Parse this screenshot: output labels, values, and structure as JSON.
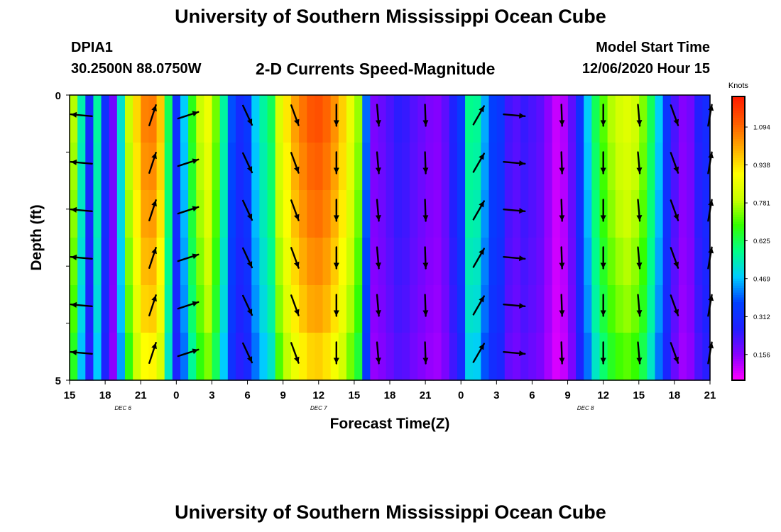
{
  "header": {
    "title": "University of Southern Mississippi Ocean Cube",
    "station": "DPIA1",
    "coordinates": "30.2500N 88.0750W",
    "subtitle": "2-D Currents Speed-Magnitude",
    "model_start_label": "Model Start Time",
    "model_start_value": "12/06/2020 Hour 15",
    "footer_title": "University of Southern Mississippi Ocean Cube"
  },
  "chart_data": {
    "type": "heatmap",
    "xlabel": "Forecast Time(Z)",
    "ylabel": "Depth (ft)",
    "y_tick_labels": [
      "0",
      "5"
    ],
    "ylim": [
      0,
      5
    ],
    "x_hours": [
      15,
      18,
      21,
      0,
      3,
      6,
      9,
      12,
      15,
      18,
      21,
      0,
      3,
      6,
      9,
      12,
      15,
      18,
      21
    ],
    "x_tick_labels": [
      "15",
      "18",
      "21",
      "0",
      "3",
      "6",
      "9",
      "12",
      "15",
      "18",
      "21",
      "0",
      "3",
      "6",
      "9",
      "12",
      "15",
      "18",
      "21"
    ],
    "day_labels": [
      {
        "label": "DEC 6",
        "hour_offset": 4.5
      },
      {
        "label": "DEC 7",
        "hour_offset": 21
      },
      {
        "label": "DEC 8",
        "hour_offset": 43.5
      }
    ],
    "x_range_hours": [
      0,
      54
    ],
    "depth_levels": 6,
    "colorbar": {
      "title": "Knots",
      "tick_labels": [
        "1.094",
        "0.938",
        "0.781",
        "0.625",
        "0.469",
        "0.312",
        "0.156"
      ],
      "ticks": [
        1.094,
        0.938,
        0.781,
        0.625,
        0.469,
        0.312,
        0.156
      ],
      "range": [
        0.05,
        1.22
      ],
      "colors": [
        "#ff00ff",
        "#8800ff",
        "#2020ff",
        "#0040ff",
        "#00ccff",
        "#00ff88",
        "#33ff00",
        "#c8ff00",
        "#ffff00",
        "#ffaa00",
        "#ff5a00",
        "#ff1a00"
      ]
    },
    "speed_by_hour": [
      0.78,
      0.55,
      0.3,
      0.56,
      0.32,
      0.18,
      0.52,
      0.8,
      0.95,
      1.06,
      1.07,
      0.97,
      0.62,
      0.32,
      0.48,
      0.67,
      0.8,
      0.87,
      0.73,
      0.56,
      0.38,
      0.3,
      0.34,
      0.48,
      0.56,
      0.62,
      0.83,
      0.93,
      1.02,
      1.08,
      1.12,
      1.13,
      1.1,
      1.04,
      0.96,
      0.86,
      0.76,
      0.4,
      0.17,
      0.19,
      0.22,
      0.25,
      0.24,
      0.21,
      0.19,
      0.17,
      0.16,
      0.2,
      0.27,
      0.35,
      0.58,
      0.57,
      0.45,
      0.36,
      0.33,
      0.23,
      0.21,
      0.24,
      0.22,
      0.2,
      0.15,
      0.1,
      0.12,
      0.2,
      0.32,
      0.48,
      0.62,
      0.71,
      0.78,
      0.82,
      0.84,
      0.81,
      0.74,
      0.62,
      0.48,
      0.33,
      0.22,
      0.16,
      0.18,
      0.26,
      0.3,
      0.3
    ],
    "speed_hour_step": 0.667,
    "depth_factor": [
      1.0,
      0.98,
      0.96,
      0.93,
      0.9,
      0.85
    ],
    "vectors": {
      "hours": [
        1,
        7,
        10,
        15,
        19,
        22.5,
        26,
        30,
        34.5,
        37.5,
        41.5,
        45,
        48,
        51,
        54
      ],
      "dir_deg": [
        -85,
        18,
        72,
        155,
        160,
        180,
        175,
        178,
        30,
        95,
        178,
        180,
        175,
        160,
        10
      ],
      "length_ft_scale": 1.0
    }
  }
}
